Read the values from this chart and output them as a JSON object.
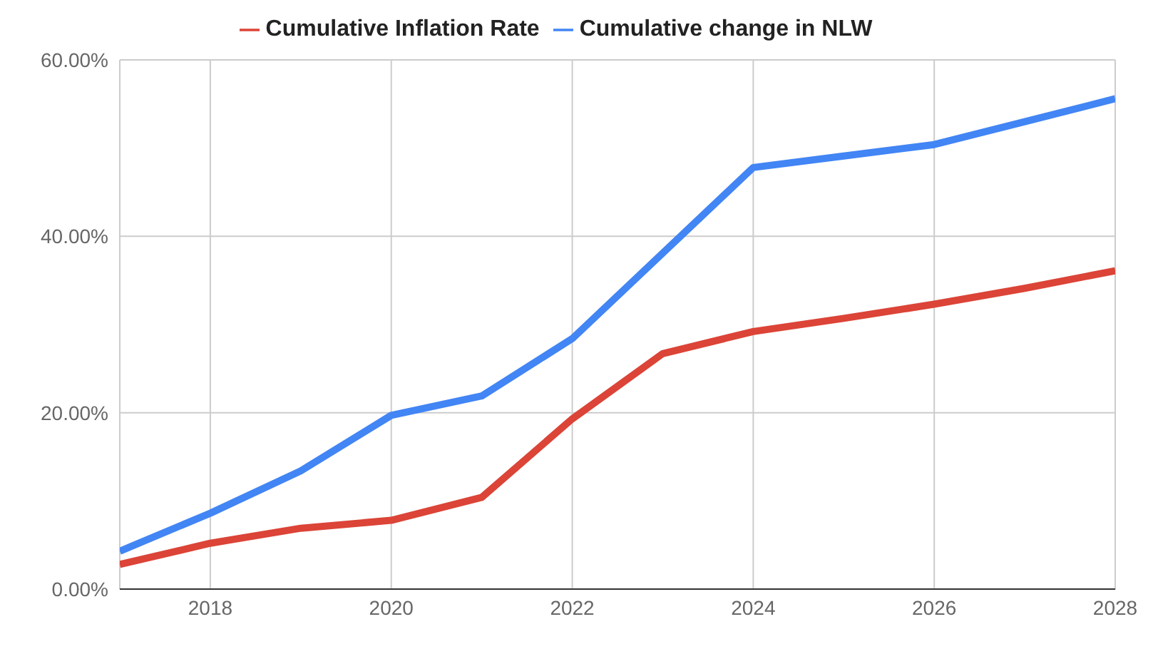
{
  "chart_data": {
    "type": "line",
    "x": [
      2017,
      2018,
      2019,
      2020,
      2021,
      2022,
      2023,
      2024,
      2025,
      2026,
      2027,
      2028
    ],
    "series": [
      {
        "name": "Cumulative change in NLW",
        "color": "#4285f4",
        "values": [
          4.3,
          8.6,
          13.4,
          19.7,
          21.9,
          28.4,
          38.1,
          47.8,
          49.1,
          50.4,
          53.0,
          55.6
        ]
      },
      {
        "name": "Cumulative Inflation Rate",
        "color": "#db4437",
        "values": [
          2.8,
          5.2,
          6.9,
          7.8,
          10.4,
          19.3,
          26.7,
          29.2,
          30.7,
          32.3,
          34.1,
          36.1
        ]
      }
    ],
    "xlim": [
      2017,
      2028
    ],
    "xticks": [
      2018,
      2020,
      2022,
      2024,
      2026,
      2028
    ],
    "ylim": [
      0,
      60
    ],
    "yticks": [
      {
        "value": 0,
        "label": "0.00%"
      },
      {
        "value": 20,
        "label": "20.00%"
      },
      {
        "value": 40,
        "label": "40.00%"
      },
      {
        "value": 60,
        "label": "60.00%"
      }
    ],
    "grid": true,
    "legend": "top",
    "marker": "none",
    "line_style": "solid"
  }
}
